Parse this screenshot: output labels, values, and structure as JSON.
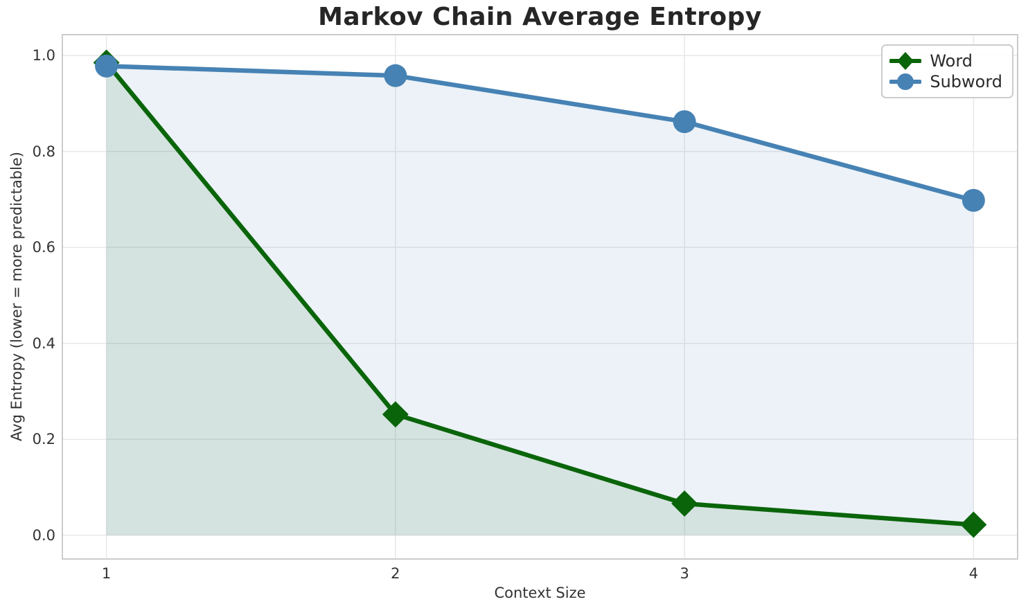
{
  "chart_data": {
    "type": "line",
    "title": "Markov Chain Average Entropy",
    "xlabel": "Context Size",
    "ylabel": "Avg Entropy (lower = more predictable)",
    "x": [
      1,
      2,
      3,
      4
    ],
    "series": [
      {
        "name": "Word",
        "values": [
          0.985,
          0.252,
          0.066,
          0.022
        ],
        "color": "#0a650a",
        "marker": "diamond",
        "fill_to_zero": true
      },
      {
        "name": "Subword",
        "values": [
          0.978,
          0.958,
          0.862,
          0.698
        ],
        "color": "#4682b4",
        "marker": "circle",
        "fill_to_zero": true
      }
    ],
    "xticks": {
      "values": [
        1,
        2,
        3,
        4
      ],
      "labels": [
        "1",
        "2",
        "3",
        "4"
      ]
    },
    "yticks": {
      "values": [
        0.0,
        0.2,
        0.4,
        0.6,
        0.8,
        1.0
      ],
      "labels": [
        "0.0",
        "0.2",
        "0.4",
        "0.6",
        "0.8",
        "1.0"
      ]
    },
    "xlim": [
      0.85,
      4.15
    ],
    "ylim": [
      -0.048,
      1.042
    ],
    "grid": true,
    "legend_position": "upper right",
    "fill_alpha": 0.1,
    "colors": {
      "grid": "#e8e8e8",
      "spine": "#cbcbcb",
      "tick_text": "#333333",
      "title_text": "#262626"
    }
  }
}
